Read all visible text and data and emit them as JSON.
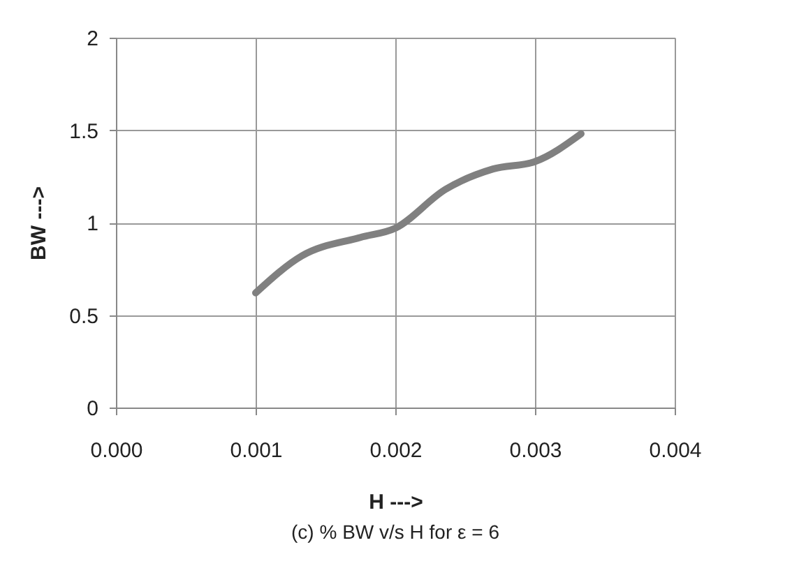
{
  "chart_data": {
    "type": "line",
    "xlabel": "H  --->",
    "ylabel": "BW  --->",
    "annotations": [
      "(c)    % BW v/s H for ε = 6"
    ],
    "x": [
      0.001,
      0.00133,
      0.00175,
      0.002,
      0.00236,
      0.0027,
      0.003,
      0.00333
    ],
    "series": [
      {
        "color": "#808080",
        "values": [
          0.62,
          0.82,
          0.92,
          0.97,
          1.18,
          1.29,
          1.33,
          1.48
        ]
      }
    ],
    "xlim": [
      0,
      0.004
    ],
    "ylim": [
      0,
      2
    ],
    "xticks": [
      {
        "value": 0,
        "label": "0.000"
      },
      {
        "value": 0.001,
        "label": "0.001"
      },
      {
        "value": 0.002,
        "label": "0.002"
      },
      {
        "value": 0.003,
        "label": "0.003"
      },
      {
        "value": 0.004,
        "label": "0.004"
      }
    ],
    "yticks": [
      0,
      0.5,
      1,
      1.5,
      2
    ],
    "grid": true,
    "marker": "none",
    "line_style": "solid"
  }
}
